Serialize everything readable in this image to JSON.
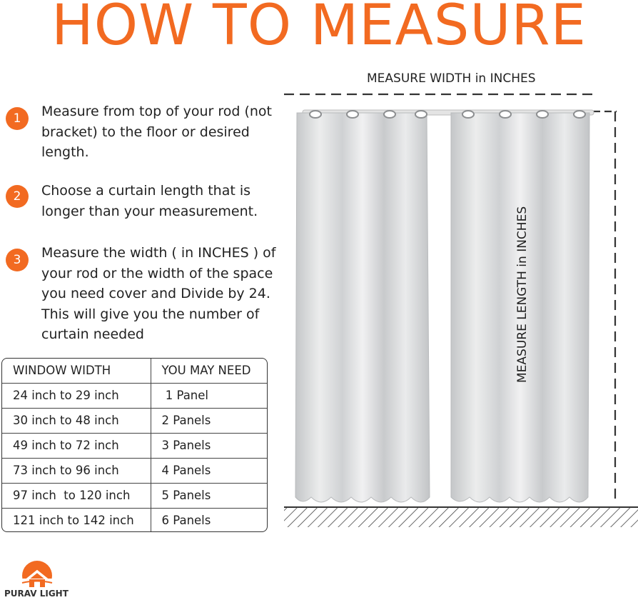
{
  "title": "HOW TO MEASURE",
  "steps": [
    {
      "number": "1",
      "text": "Measure from top of your rod (not bracket) to the floor or desired length."
    },
    {
      "number": "2",
      "text": "Choose a curtain length that is longer than your measurement."
    },
    {
      "number": "3",
      "text": "Measure the width ( in INCHES ) of your rod or the width of the space you need cover and Divide by 24. This will give you the number of curtain needed"
    }
  ],
  "size_table": {
    "headers": [
      "WINDOW WIDTH",
      "YOU MAY NEED"
    ],
    "rows": [
      [
        "24 inch to 29 inch",
        " 1 Panel"
      ],
      [
        "30 inch to 48 inch",
        "2 Panels"
      ],
      [
        "49 inch to 72 inch",
        "3 Panels"
      ],
      [
        "73 inch to 96 inch",
        "4 Panels"
      ],
      [
        "97 inch  to 120 inch",
        "5 Panels"
      ],
      [
        "121 inch to 142 inch",
        "6 Panels"
      ]
    ]
  },
  "illustration": {
    "width_label": "MEASURE WIDTH in INCHES",
    "length_label": "MEASURE LENGTH in INCHES"
  },
  "brand": {
    "name": "PURAV LIGHT",
    "icon": "house-sun-logo-icon"
  },
  "colors": {
    "accent": "#f26a21",
    "curtain": "#d9dadb",
    "text": "#222222"
  }
}
